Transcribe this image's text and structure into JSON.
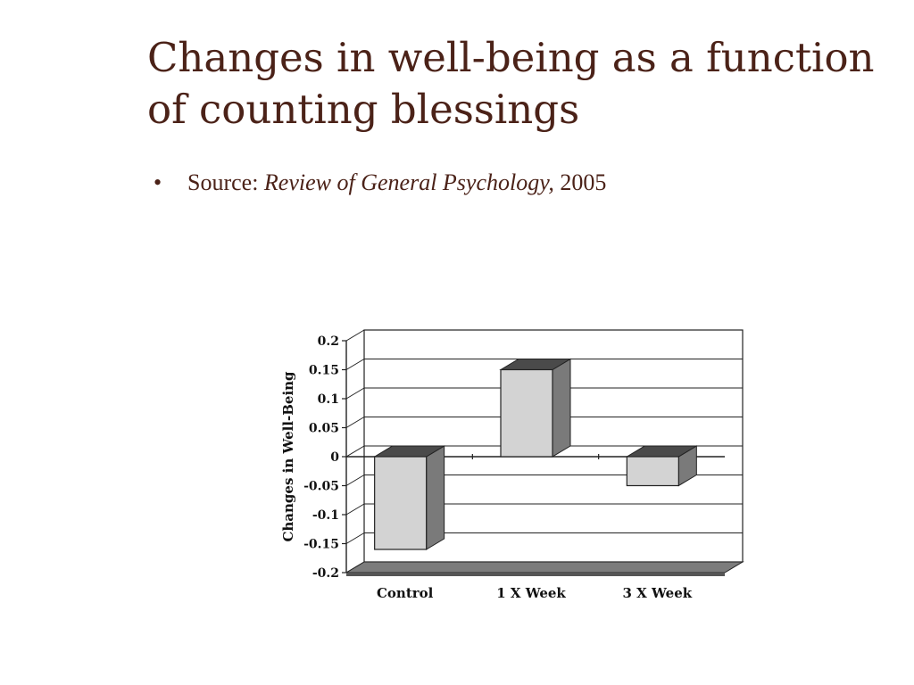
{
  "slide": {
    "title": "Changes in well-being as a function of counting blessings",
    "bullet": {
      "prefix": "Source: ",
      "journal": "Review of General Psychology,",
      "year": " 2005"
    }
  },
  "colors": {
    "title": "#4b2218",
    "bar_front": "#d3d3d3",
    "bar_side": "#7a7a7a",
    "bar_top": "#4a4a4a",
    "floor": "#7c7c7c"
  },
  "chart_data": {
    "type": "bar",
    "categories": [
      "Control",
      "1 X Week",
      "3 X Week"
    ],
    "values": [
      -0.16,
      0.15,
      -0.05
    ],
    "title": "",
    "xlabel": "",
    "ylabel": "Changes in Well-Being",
    "ylim": [
      -0.2,
      0.2
    ],
    "yticks": [
      "0.2",
      "0.15",
      "0.1",
      "0.05",
      "0",
      "-0.05",
      "-0.1",
      "-0.15",
      "-0.2"
    ],
    "grid": true,
    "style": "3d"
  }
}
